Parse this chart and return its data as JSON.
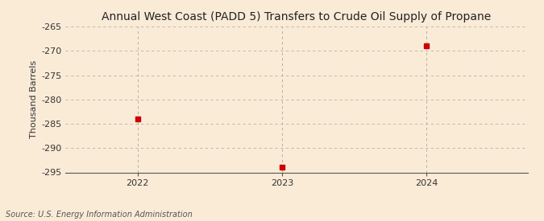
{
  "title": "Annual West Coast (PADD 5) Transfers to Crude Oil Supply of Propane",
  "ylabel": "Thousand Barrels",
  "source": "Source: U.S. Energy Information Administration",
  "x": [
    2022,
    2023,
    2024
  ],
  "y": [
    -284,
    -294,
    -269
  ],
  "ylim": [
    -295,
    -265
  ],
  "yticks": [
    -265,
    -270,
    -275,
    -280,
    -285,
    -290,
    -295
  ],
  "xlim": [
    2021.5,
    2024.7
  ],
  "xticks": [
    2022,
    2023,
    2024
  ],
  "marker_color": "#cc0000",
  "marker": "s",
  "marker_size": 4,
  "bg_color": "#faebd7",
  "grid_color_h": "#aaaaaa",
  "grid_color_v": "#888888",
  "title_fontsize": 10,
  "axis_fontsize": 8,
  "tick_fontsize": 8,
  "source_fontsize": 7
}
